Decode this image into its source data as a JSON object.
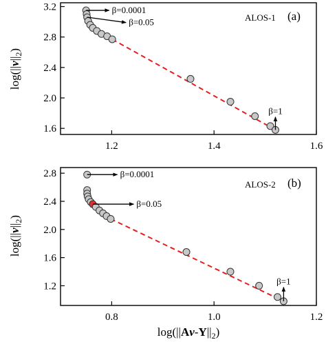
{
  "chart_data": [
    {
      "type": "scatter",
      "panel_tag": "(a)",
      "dataset_label": "ALOS-1",
      "xlabel": "",
      "ylabel": "log(||v||2)",
      "ylabel_parts": {
        "pre": "log(||",
        "var": "v",
        "post": "||",
        "sub": "2",
        "close": ")"
      },
      "xlim": [
        1.1,
        1.6
      ],
      "ylim": [
        1.52,
        3.25
      ],
      "xticks": [
        1.2,
        1.4,
        1.6
      ],
      "xtick_labels": [
        "1.2",
        "1.4",
        "1.6"
      ],
      "yticks": [
        1.6,
        2.0,
        2.4,
        2.8,
        3.2
      ],
      "ytick_labels": [
        "1.6",
        "2.0",
        "2.4",
        "2.8",
        "3.2"
      ],
      "grid": false,
      "series": [
        {
          "points": [
            {
              "x": 1.15,
              "y": 3.15
            },
            {
              "x": 1.151,
              "y": 3.1
            },
            {
              "x": 1.152,
              "y": 3.06
            },
            {
              "x": 1.154,
              "y": 3.01
            },
            {
              "x": 1.158,
              "y": 2.96
            },
            {
              "x": 1.163,
              "y": 2.92
            },
            {
              "x": 1.171,
              "y": 2.88
            },
            {
              "x": 1.18,
              "y": 2.84
            },
            {
              "x": 1.191,
              "y": 2.81
            },
            {
              "x": 1.201,
              "y": 2.77
            },
            {
              "x": 1.354,
              "y": 2.25
            },
            {
              "x": 1.432,
              "y": 1.95
            },
            {
              "x": 1.48,
              "y": 1.76
            },
            {
              "x": 1.51,
              "y": 1.63
            },
            {
              "x": 1.52,
              "y": 1.58
            }
          ],
          "marker_color": "#c8c8c8",
          "highlight_index": 5,
          "highlight_color": "#c8c8c8"
        }
      ],
      "fit_line": {
        "from": {
          "x": 1.201,
          "y": 2.77
        },
        "to": {
          "x": 1.52,
          "y": 1.58
        },
        "color": "#e02020"
      },
      "annotations": [
        {
          "text": "β=0.0001",
          "at": {
            "x": 1.15,
            "y": 3.15
          },
          "to": {
            "x": 1.195,
            "y": 3.15
          }
        },
        {
          "text": "β=0.05",
          "at": {
            "x": 1.152,
            "y": 3.06
          },
          "to": {
            "x": 1.228,
            "y": 2.99
          }
        },
        {
          "text": "β=1",
          "at": {
            "x": 1.52,
            "y": 1.58
          },
          "to": {
            "x": 1.52,
            "y": 1.75
          }
        }
      ]
    },
    {
      "type": "scatter",
      "panel_tag": "(b)",
      "dataset_label": "ALOS-2",
      "xlabel": "log(||Av-Y||2)",
      "xlabel_parts": {
        "pre": "log(||",
        "bold": "A",
        "var": "v",
        "dash": "-",
        "bold2": "Y",
        "post": "||",
        "sub": "2",
        "close": ")"
      },
      "ylabel": "log(||v||2)",
      "ylabel_parts": {
        "pre": "log(||",
        "var": "v",
        "post": "||",
        "sub": "2",
        "close": ")"
      },
      "xlim": [
        0.7,
        1.2
      ],
      "ylim": [
        0.92,
        2.88
      ],
      "xticks": [
        0.8,
        1.0,
        1.2
      ],
      "xtick_labels": [
        "0.8",
        "1.0",
        "1.2"
      ],
      "yticks": [
        1.2,
        1.6,
        2.0,
        2.4,
        2.8
      ],
      "ytick_labels": [
        "1.2",
        "1.6",
        "2.0",
        "2.4",
        "2.8"
      ],
      "grid": false,
      "series": [
        {
          "points": [
            {
              "x": 0.752,
              "y": 2.78
            },
            {
              "x": 0.752,
              "y": 2.56
            },
            {
              "x": 0.752,
              "y": 2.51
            },
            {
              "x": 0.753,
              "y": 2.47
            },
            {
              "x": 0.755,
              "y": 2.43
            },
            {
              "x": 0.759,
              "y": 2.39
            },
            {
              "x": 0.763,
              "y": 2.36
            },
            {
              "x": 0.769,
              "y": 2.32
            },
            {
              "x": 0.776,
              "y": 2.27
            },
            {
              "x": 0.783,
              "y": 2.23
            },
            {
              "x": 0.79,
              "y": 2.19
            },
            {
              "x": 0.798,
              "y": 2.15
            },
            {
              "x": 0.946,
              "y": 1.68
            },
            {
              "x": 1.032,
              "y": 1.4
            },
            {
              "x": 1.088,
              "y": 1.2
            },
            {
              "x": 1.124,
              "y": 1.04
            },
            {
              "x": 1.136,
              "y": 0.98
            }
          ],
          "marker_color": "#c8c8c8",
          "highlight_index": 6,
          "highlight_color": "#e03030"
        }
      ],
      "fit_line": {
        "from": {
          "x": 0.798,
          "y": 2.15
        },
        "to": {
          "x": 1.136,
          "y": 0.98
        },
        "color": "#e02020"
      },
      "annotations": [
        {
          "text": "β=0.0001",
          "at": {
            "x": 0.752,
            "y": 2.78
          },
          "to": {
            "x": 0.811,
            "y": 2.78
          }
        },
        {
          "text": "β=0.05",
          "at": {
            "x": 0.763,
            "y": 2.36
          },
          "to": {
            "x": 0.843,
            "y": 2.36
          }
        },
        {
          "text": "β=1",
          "at": {
            "x": 1.136,
            "y": 0.98
          },
          "to": {
            "x": 1.136,
            "y": 1.18
          }
        }
      ]
    }
  ]
}
